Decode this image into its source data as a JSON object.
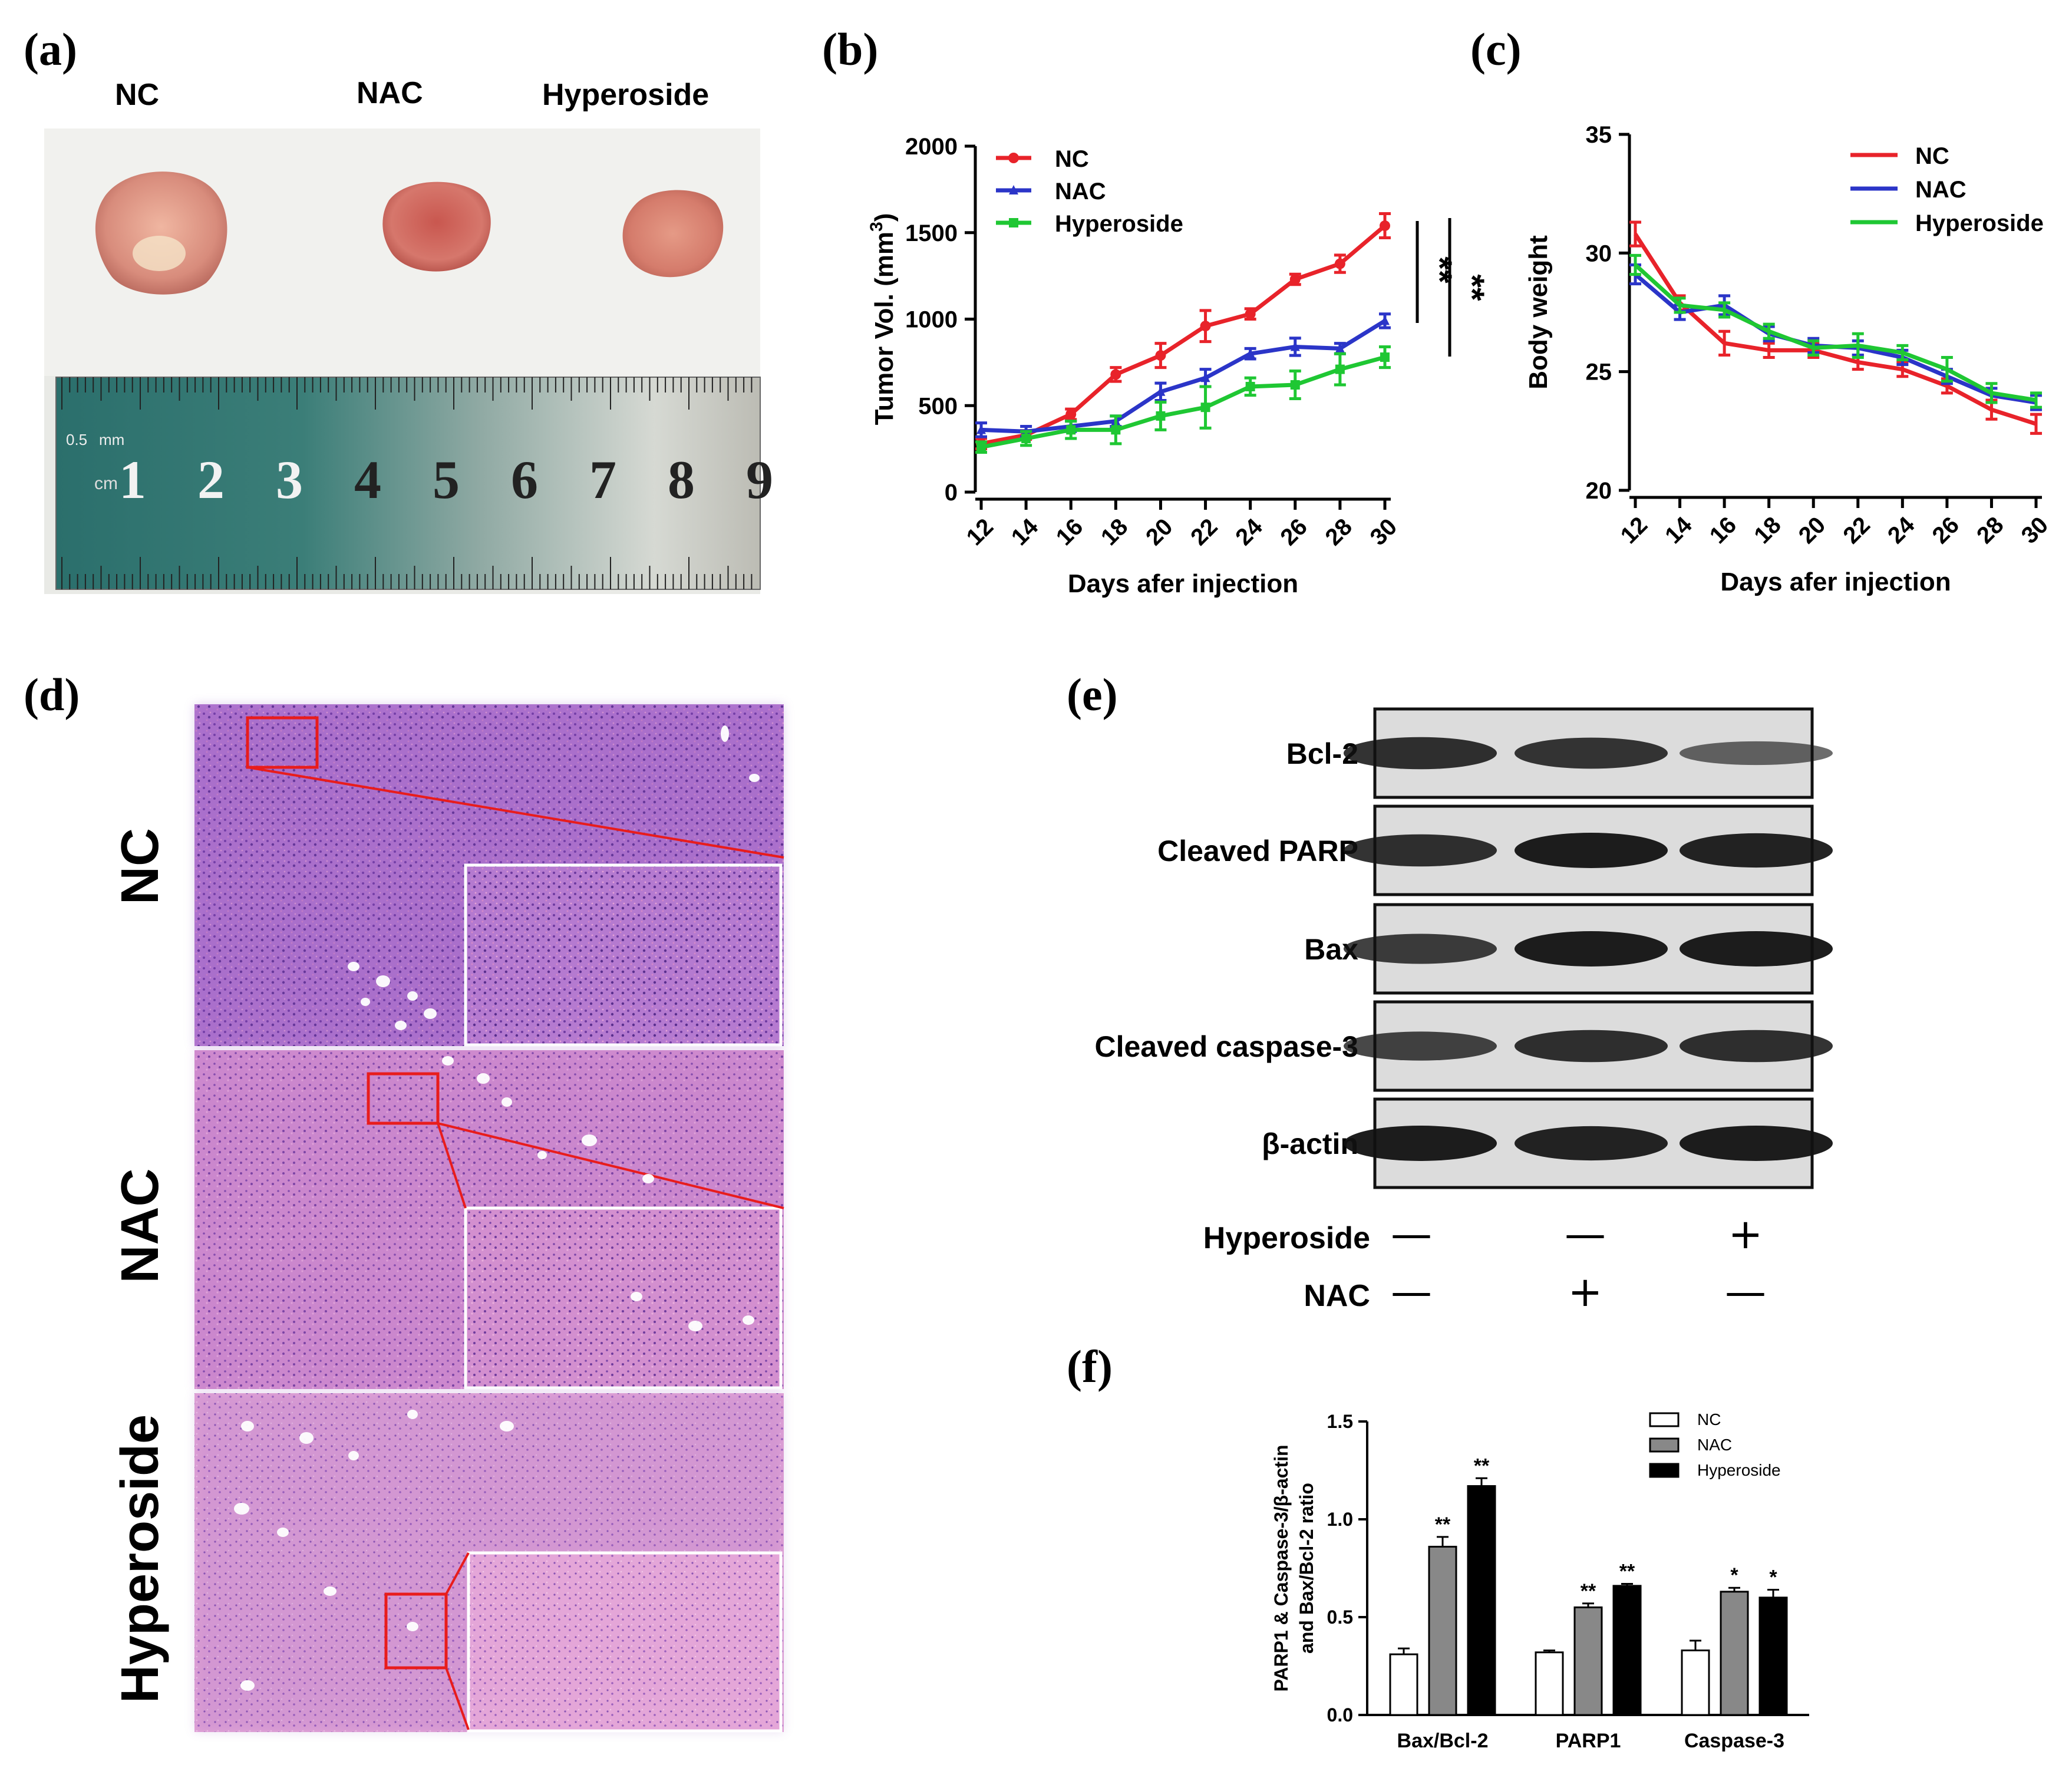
{
  "panels": {
    "a": {
      "letter": "(a)",
      "groups": [
        "NC",
        "NAC",
        "Hyperoside"
      ],
      "ruler": {
        "unit_a": "0.5",
        "unit_b": "mm",
        "unit_c": "cm",
        "digits": [
          "1",
          "2",
          "3",
          "4",
          "5",
          "6",
          "7",
          "8",
          "9"
        ]
      }
    },
    "b": {
      "letter": "(b)"
    },
    "c": {
      "letter": "(c)"
    },
    "d": {
      "letter": "(d)",
      "rows": [
        "NC",
        "NAC",
        "Hyperoside"
      ]
    },
    "e": {
      "letter": "(e)",
      "proteins": [
        "Bcl-2",
        "Cleaved PARP",
        "Bax",
        "Cleaved caspase-3",
        "β-actin"
      ],
      "band_intensity": [
        [
          0.85,
          0.8,
          0.45
        ],
        [
          0.85,
          1.0,
          0.95
        ],
        [
          0.75,
          1.0,
          1.0
        ],
        [
          0.7,
          0.85,
          0.85
        ],
        [
          1.0,
          0.95,
          1.0
        ]
      ],
      "treatments": [
        {
          "name": "Hyperoside",
          "signs": [
            "—",
            "—",
            "+"
          ]
        },
        {
          "name": "NAC",
          "signs": [
            "—",
            "+",
            "—"
          ]
        }
      ]
    },
    "f": {
      "letter": "(f)"
    }
  },
  "chart_data": [
    {
      "id": "b",
      "type": "line",
      "xlabel": "Days afer injection",
      "ylabel": "Tumor Vol. (mm3)",
      "x": [
        12,
        14,
        16,
        18,
        20,
        22,
        24,
        26,
        28,
        30
      ],
      "xlim": [
        12,
        30
      ],
      "ylim": [
        0,
        2000
      ],
      "yticks": [
        0,
        500,
        1000,
        1500,
        2000
      ],
      "series": [
        {
          "name": "NC",
          "color": "#e8232a",
          "marker": "circle",
          "values": [
            280,
            330,
            450,
            680,
            790,
            960,
            1030,
            1230,
            1320,
            1540
          ],
          "errors": [
            30,
            25,
            30,
            40,
            70,
            90,
            30,
            30,
            50,
            70
          ]
        },
        {
          "name": "NAC",
          "color": "#2b35c8",
          "marker": "triangle",
          "values": [
            360,
            350,
            380,
            410,
            580,
            660,
            800,
            840,
            830,
            990
          ],
          "errors": [
            40,
            30,
            30,
            30,
            50,
            50,
            30,
            50,
            30,
            40
          ]
        },
        {
          "name": "Hyperoside",
          "color": "#1fc733",
          "marker": "square",
          "values": [
            260,
            310,
            360,
            360,
            440,
            490,
            610,
            620,
            710,
            780
          ],
          "errors": [
            30,
            40,
            50,
            80,
            80,
            120,
            50,
            80,
            90,
            60
          ]
        }
      ],
      "significance": [
        "**",
        "**"
      ]
    },
    {
      "id": "c",
      "type": "line",
      "xlabel": "Days afer injection",
      "ylabel": "Body weight",
      "x": [
        12,
        14,
        16,
        18,
        20,
        22,
        24,
        26,
        28,
        30
      ],
      "xlim": [
        12,
        30
      ],
      "ylim": [
        20,
        35
      ],
      "yticks": [
        20,
        25,
        30,
        35
      ],
      "series": [
        {
          "name": "NC",
          "color": "#e8232a",
          "values": [
            30.8,
            27.9,
            26.2,
            25.9,
            25.9,
            25.4,
            25.1,
            24.4,
            23.4,
            22.8
          ],
          "errors": [
            0.5,
            0.3,
            0.5,
            0.3,
            0.3,
            0.3,
            0.3,
            0.3,
            0.4,
            0.4
          ]
        },
        {
          "name": "NAC",
          "color": "#2b35c8",
          "values": [
            29.1,
            27.5,
            27.8,
            26.6,
            26.1,
            26.0,
            25.6,
            24.8,
            24.0,
            23.7
          ],
          "errors": [
            0.4,
            0.3,
            0.4,
            0.3,
            0.3,
            0.3,
            0.3,
            0.3,
            0.3,
            0.3
          ]
        },
        {
          "name": "Hyperoside",
          "color": "#1fc733",
          "values": [
            29.5,
            27.8,
            27.6,
            26.7,
            26.0,
            26.1,
            25.8,
            25.1,
            24.1,
            23.8
          ],
          "errors": [
            0.4,
            0.3,
            0.3,
            0.3,
            0.3,
            0.5,
            0.3,
            0.5,
            0.4,
            0.3
          ]
        }
      ]
    },
    {
      "id": "f",
      "type": "bar",
      "ylabel_line1": "PARP1 & Caspase-3/β-actin",
      "ylabel_line2": "and Bax/Bcl-2 ratio",
      "categories": [
        "Bax/Bcl-2",
        "PARP1",
        "Caspase-3"
      ],
      "ylim": [
        0,
        1.5
      ],
      "yticks": [
        "0.0",
        "0.5",
        "1.0",
        "1.5"
      ],
      "series": [
        {
          "name": "NC",
          "color": "#ffffff",
          "values": [
            0.31,
            0.32,
            0.33
          ],
          "errors": [
            0.03,
            0.01,
            0.05
          ],
          "sig": [
            "",
            "",
            ""
          ]
        },
        {
          "name": "NAC",
          "color": "#888888",
          "values": [
            0.86,
            0.55,
            0.63
          ],
          "errors": [
            0.05,
            0.02,
            0.02
          ],
          "sig": [
            "**",
            "**",
            "*"
          ]
        },
        {
          "name": "Hyperoside",
          "color": "#000000",
          "values": [
            1.17,
            0.66,
            0.6
          ],
          "errors": [
            0.04,
            0.01,
            0.04
          ],
          "sig": [
            "**",
            "**",
            "*"
          ]
        }
      ]
    }
  ]
}
